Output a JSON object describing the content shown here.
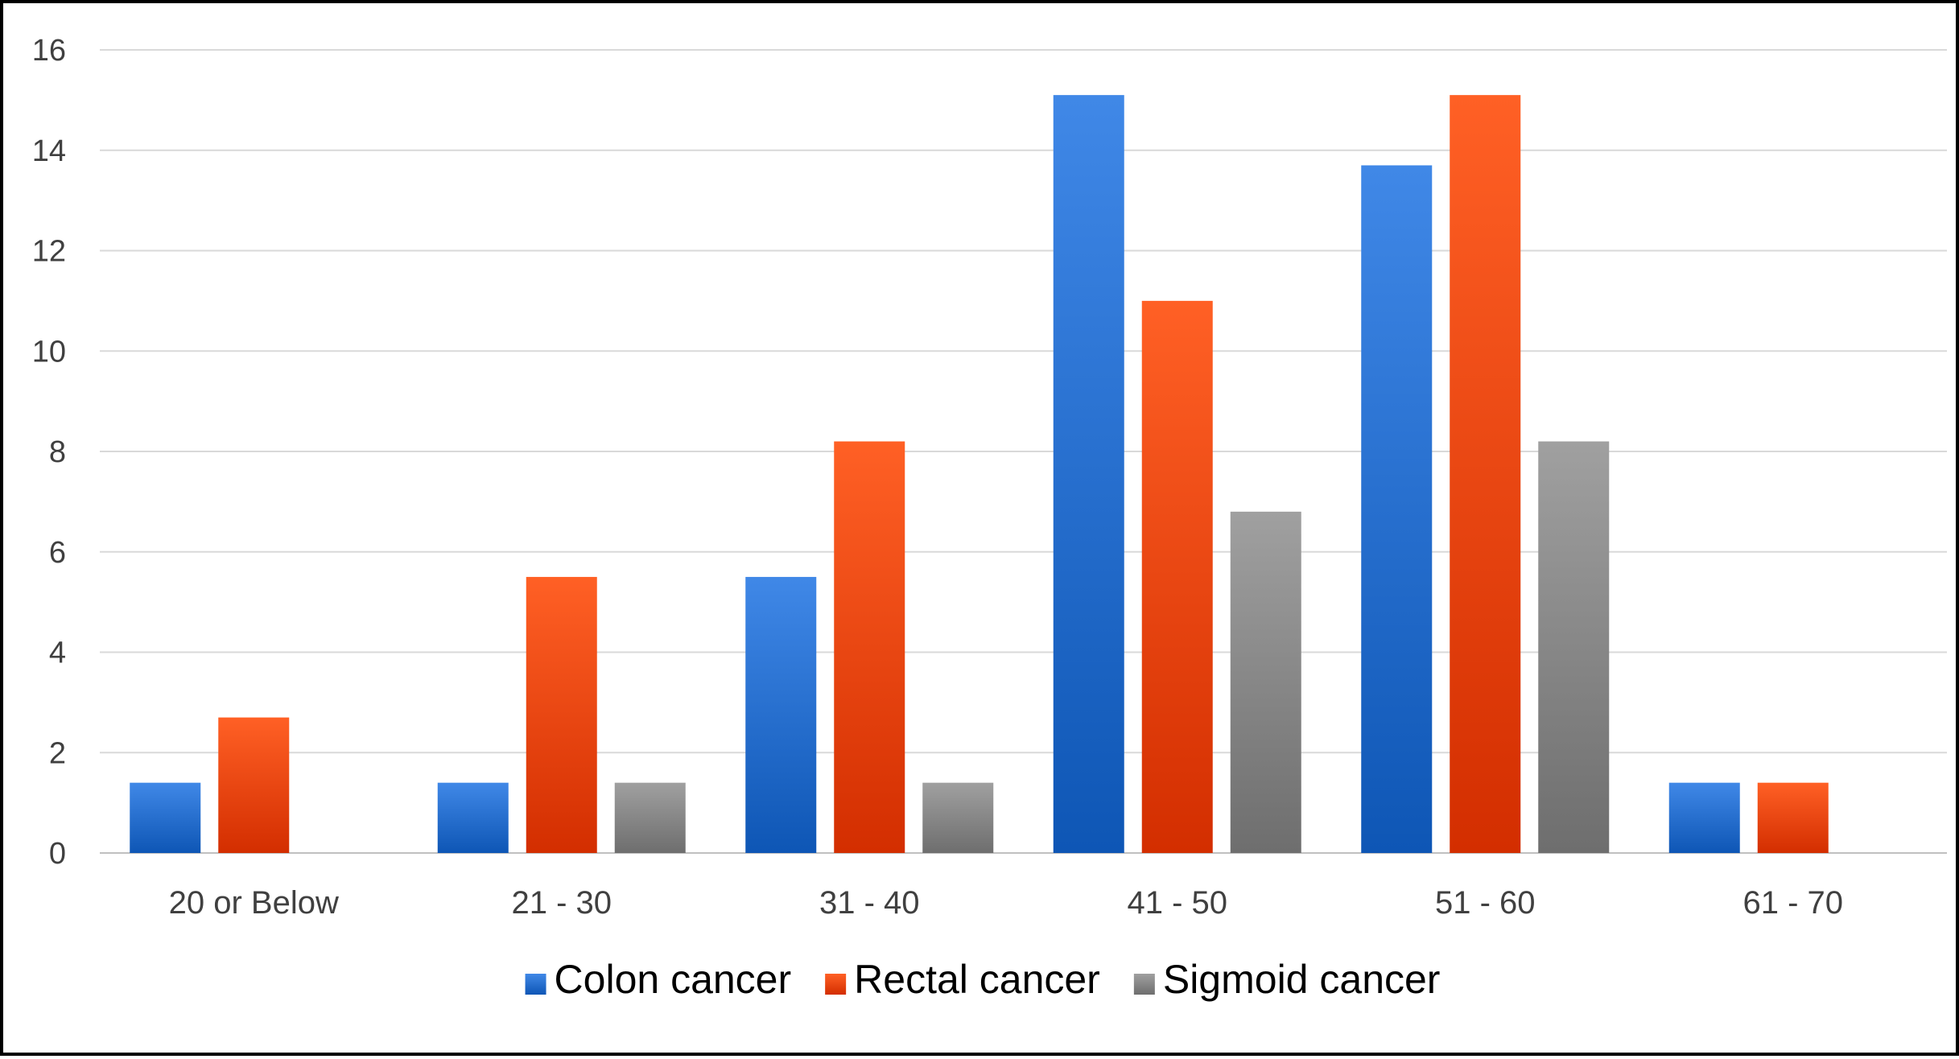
{
  "chart_data": {
    "type": "bar",
    "categories": [
      "20 or Below",
      "21 - 30",
      "31 - 40",
      "41 - 50",
      "51 - 60",
      "61 - 70"
    ],
    "series": [
      {
        "name": "Colon cancer",
        "values": [
          1.4,
          1.4,
          5.5,
          15.1,
          13.7,
          1.4
        ],
        "color": "#2a72d1"
      },
      {
        "name": "Rectal cancer",
        "values": [
          2.7,
          5.5,
          8.2,
          11.0,
          15.1,
          1.4
        ],
        "color": "#ef4a0f"
      },
      {
        "name": "Sigmoid cancer",
        "values": [
          0,
          1.4,
          1.4,
          6.8,
          8.2,
          0
        ],
        "color": "#8a8a8a"
      }
    ],
    "yticks": [
      "0",
      "2",
      "4",
      "6",
      "8",
      "10",
      "12",
      "14",
      "16"
    ],
    "ylim": [
      0,
      16
    ],
    "title": "",
    "xlabel": "",
    "ylabel": "",
    "grid": true,
    "legend_position": "bottom"
  }
}
